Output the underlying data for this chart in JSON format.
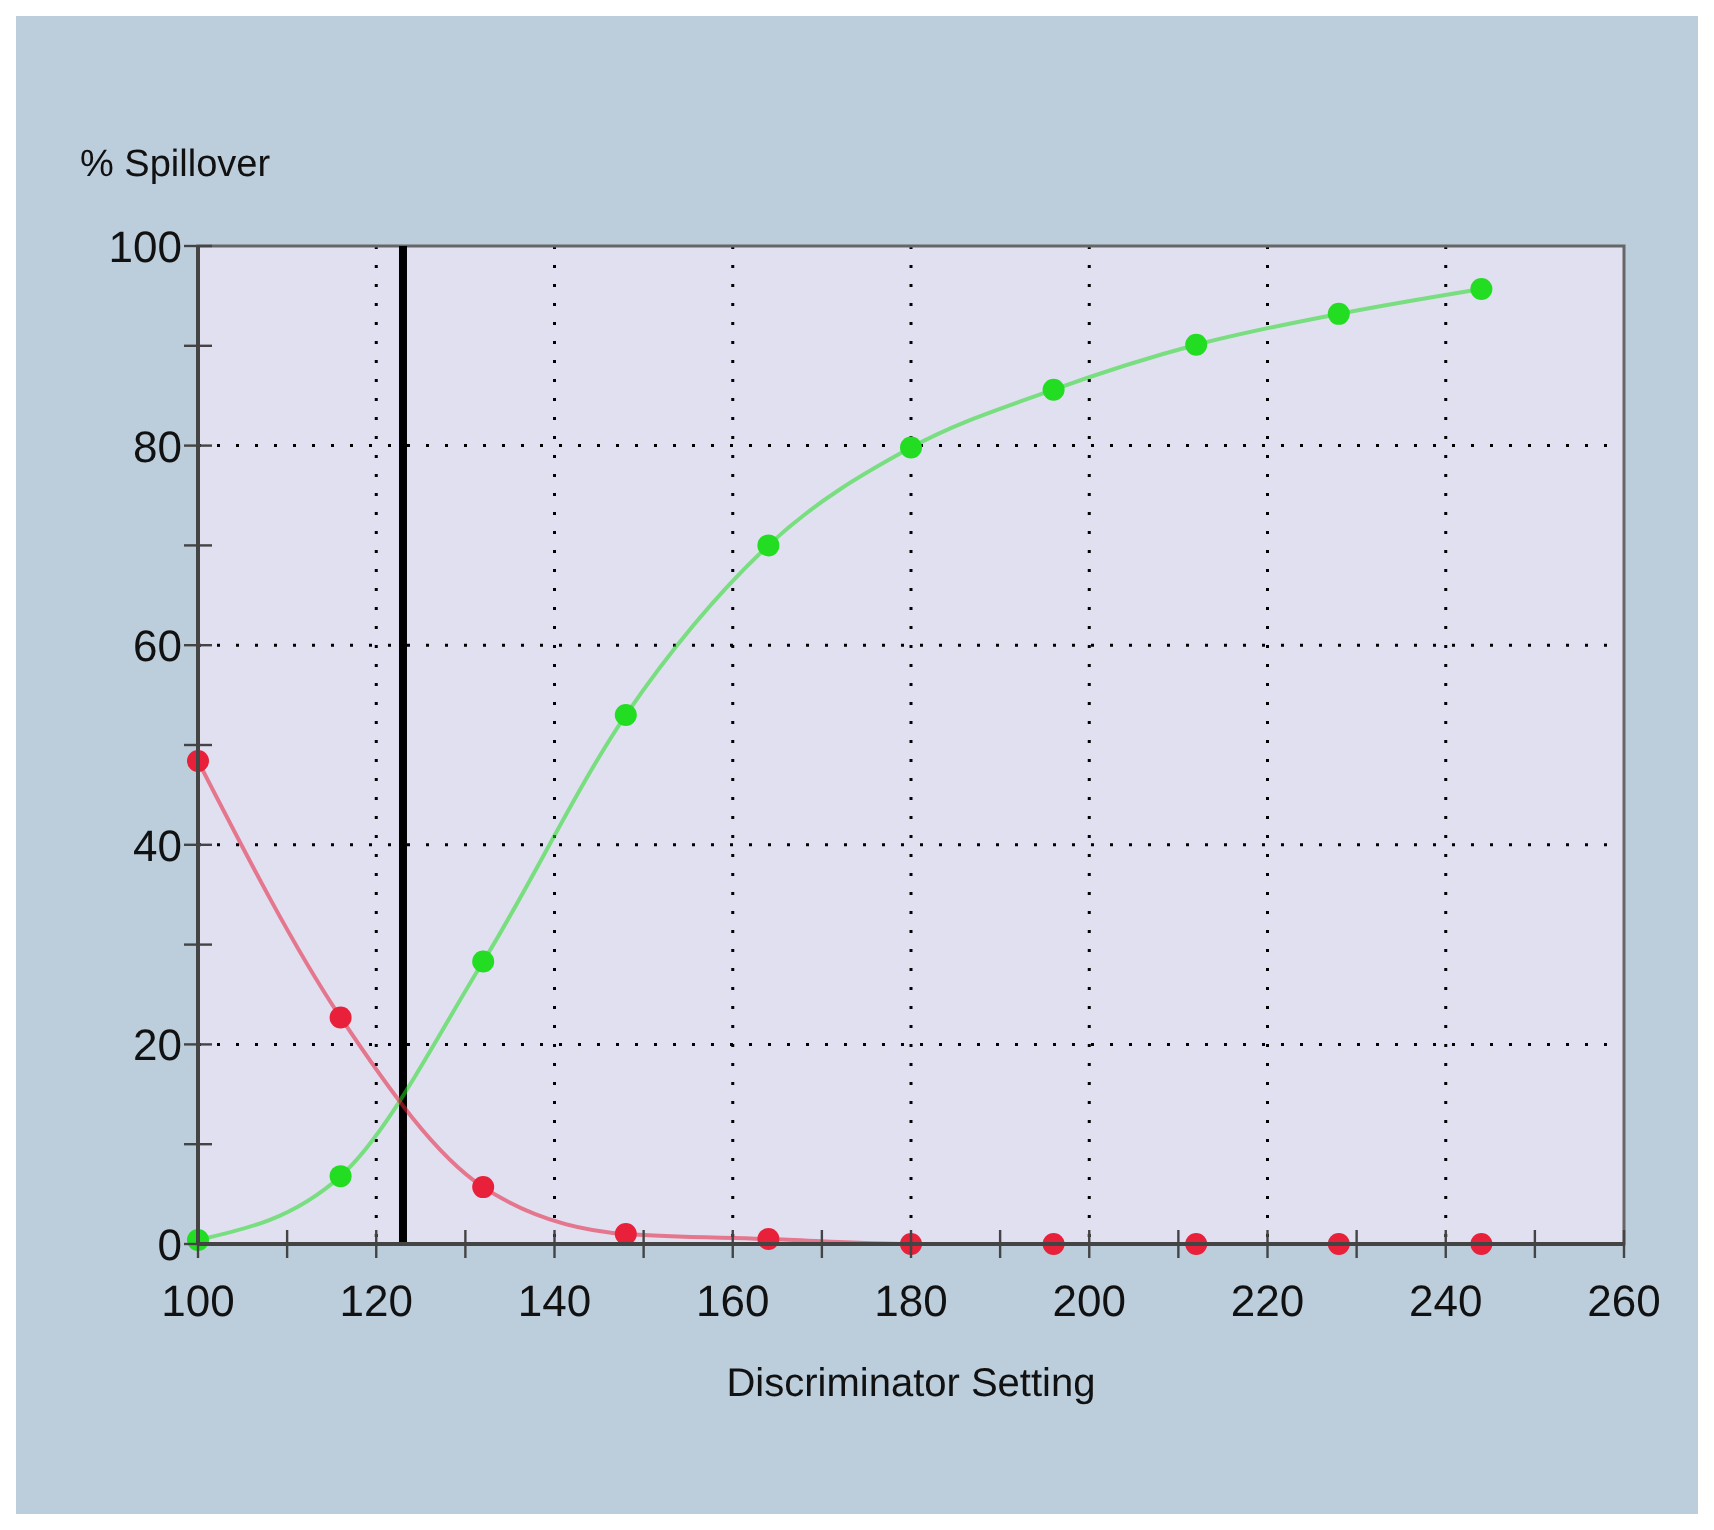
{
  "chart_data": {
    "type": "line",
    "ylabel": "% Spillover",
    "xlabel": "Discriminator Setting",
    "x": [
      100,
      116,
      132,
      148,
      164,
      180,
      196,
      212,
      228,
      244
    ],
    "series": [
      {
        "color": "#22dd22",
        "values": [
          0.4,
          6.8,
          28.3,
          53,
          70,
          79.8,
          85.6,
          90.1,
          93.2,
          95.7
        ]
      },
      {
        "color": "#e8203a",
        "values": [
          48.4,
          22.7,
          5.7,
          1.0,
          0.5,
          0,
          0,
          0,
          0,
          0
        ]
      }
    ],
    "xlim": [
      100,
      260
    ],
    "ylim": [
      0,
      100
    ],
    "xticks": [
      100,
      {
        "value": 110,
        "label": null
      },
      120,
      {
        "value": 130,
        "label": null
      },
      140,
      {
        "value": 150,
        "label": null
      },
      160,
      {
        "value": 170,
        "label": null
      },
      180,
      {
        "value": 190,
        "label": null
      },
      200,
      {
        "value": 210,
        "label": null
      },
      220,
      {
        "value": 230,
        "label": null
      },
      240,
      {
        "value": 250,
        "label": null
      },
      260
    ],
    "yticks": [
      0,
      {
        "value": 10,
        "label": null
      },
      20,
      {
        "value": 30,
        "label": null
      },
      40,
      {
        "value": 50,
        "label": null
      },
      60,
      {
        "value": 70,
        "label": null
      },
      80,
      {
        "value": 90,
        "label": null
      },
      100
    ],
    "grid": true,
    "marker": "circle",
    "line_style": "solid",
    "ref_lines": [
      {
        "axis": "x",
        "value": 123,
        "color": "#000000"
      }
    ]
  }
}
